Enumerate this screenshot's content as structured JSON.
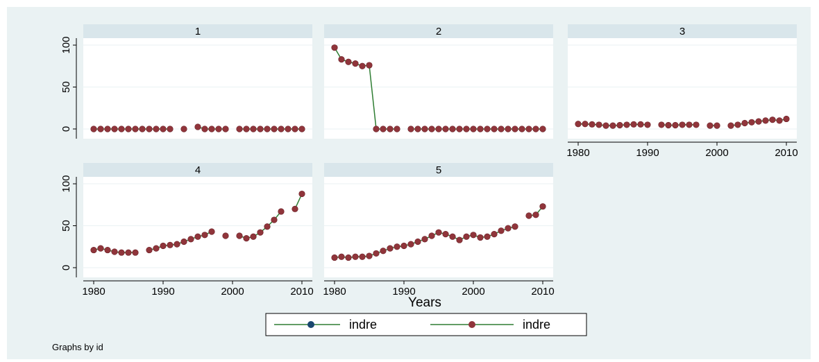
{
  "chart_data": [
    {
      "type": "line",
      "title": "1",
      "x": [
        1980,
        1981,
        1982,
        1983,
        1984,
        1985,
        1986,
        1987,
        1988,
        1989,
        1990,
        1991,
        1992,
        1993,
        1994,
        1995,
        1996,
        1997,
        1998,
        1999,
        2000,
        2001,
        2002,
        2003,
        2004,
        2005,
        2006,
        2007,
        2008,
        2009,
        2010
      ],
      "series": [
        {
          "color": "#2e7d32",
          "marker_color": "#90353b",
          "values": [
            0,
            0,
            0,
            0,
            0,
            0,
            0,
            0,
            0,
            0,
            0,
            0,
            null,
            0,
            null,
            2.5,
            0,
            0,
            0,
            0,
            null,
            0,
            0,
            0,
            0,
            0,
            0,
            0,
            0,
            0,
            0
          ]
        }
      ],
      "xlim": [
        1978.5,
        2011.5
      ],
      "ylim": [
        -11.6,
        108.3
      ],
      "yticks": [
        0,
        50,
        100
      ],
      "grid": true
    },
    {
      "type": "line",
      "title": "2",
      "x": [
        1980,
        1981,
        1982,
        1983,
        1984,
        1985,
        1986,
        1987,
        1988,
        1989,
        1990,
        1991,
        1992,
        1993,
        1994,
        1995,
        1996,
        1997,
        1998,
        1999,
        2000,
        2001,
        2002,
        2003,
        2004,
        2005,
        2006,
        2007,
        2008,
        2009,
        2010
      ],
      "series": [
        {
          "color": "#2e7d32",
          "marker_color": "#90353b",
          "values": [
            97,
            83,
            80,
            78,
            75,
            76,
            0,
            0,
            0,
            0,
            null,
            0,
            0,
            0,
            0,
            0,
            0,
            0,
            0,
            0,
            0,
            0,
            0,
            0,
            0,
            0,
            0,
            0,
            0,
            0,
            0
          ]
        }
      ],
      "xlim": [
        1978.5,
        2011.5
      ],
      "ylim": [
        -11.6,
        108.3
      ],
      "grid": true
    },
    {
      "type": "line",
      "title": "3",
      "x": [
        1980,
        1981,
        1982,
        1983,
        1984,
        1985,
        1986,
        1987,
        1988,
        1989,
        1990,
        1991,
        1992,
        1993,
        1994,
        1995,
        1996,
        1997,
        1998,
        1999,
        2000,
        2001,
        2002,
        2003,
        2004,
        2005,
        2006,
        2007,
        2008,
        2009,
        2010
      ],
      "series": [
        {
          "color": "#2e7d32",
          "marker_color": "#90353b",
          "values": [
            6,
            6,
            5.5,
            5,
            4,
            4,
            4.5,
            5,
            5.5,
            5.5,
            5,
            null,
            5,
            4.5,
            4.5,
            5,
            5,
            5,
            null,
            4,
            4,
            null,
            4,
            5,
            7,
            8,
            9,
            10,
            11,
            10,
            12
          ]
        }
      ],
      "xlim": [
        1978.5,
        2011.5
      ],
      "ylim": [
        -11.6,
        108.3
      ],
      "xticks": [
        1980,
        1990,
        2000,
        2010
      ],
      "grid": true
    },
    {
      "type": "line",
      "title": "4",
      "x": [
        1980,
        1981,
        1982,
        1983,
        1984,
        1985,
        1986,
        1987,
        1988,
        1989,
        1990,
        1991,
        1992,
        1993,
        1994,
        1995,
        1996,
        1997,
        1998,
        1999,
        2000,
        2001,
        2002,
        2003,
        2004,
        2005,
        2006,
        2007,
        2008,
        2009,
        2010
      ],
      "series": [
        {
          "color": "#2e7d32",
          "marker_color": "#90353b",
          "values": [
            21,
            23,
            21,
            19,
            18,
            18,
            18,
            null,
            21,
            23,
            26,
            27,
            28,
            31,
            34,
            37,
            39,
            43,
            null,
            38,
            null,
            38,
            35,
            37,
            42,
            49,
            57,
            67,
            null,
            70,
            88
          ]
        }
      ],
      "xlim": [
        1978.5,
        2011.5
      ],
      "ylim": [
        -11.6,
        108.3
      ],
      "yticks": [
        0,
        50,
        100
      ],
      "xticks": [
        1980,
        1990,
        2000,
        2010
      ],
      "grid": true
    },
    {
      "type": "line",
      "title": "5",
      "x": [
        1980,
        1981,
        1982,
        1983,
        1984,
        1985,
        1986,
        1987,
        1988,
        1989,
        1990,
        1991,
        1992,
        1993,
        1994,
        1995,
        1996,
        1997,
        1998,
        1999,
        2000,
        2001,
        2002,
        2003,
        2004,
        2005,
        2006,
        2007,
        2008,
        2009,
        2010
      ],
      "series": [
        {
          "color": "#2e7d32",
          "marker_color": "#90353b",
          "values": [
            12,
            13,
            12,
            13,
            13,
            14,
            17,
            20,
            23,
            25,
            26,
            28,
            31,
            34,
            38,
            42,
            40,
            37,
            33,
            37,
            39,
            36,
            37,
            40,
            44,
            47,
            49,
            null,
            62,
            63,
            73
          ]
        }
      ],
      "xlim": [
        1978.5,
        2011.5
      ],
      "ylim": [
        -11.6,
        108.3
      ],
      "xticks": [
        1980,
        1990,
        2000,
        2010
      ],
      "grid": true
    }
  ],
  "x_label": "Years",
  "legend": [
    {
      "name": "indre",
      "color": "#2e7d32",
      "marker_color": "#1a476f"
    },
    {
      "name": "indre",
      "color": "#2e7d32",
      "marker_color": "#90353b"
    }
  ],
  "note": "Graphs by id"
}
